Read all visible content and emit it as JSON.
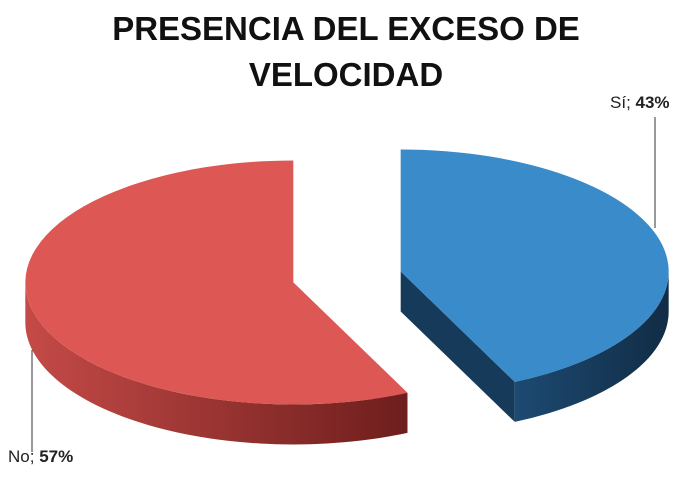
{
  "chart_data": {
    "type": "pie3d",
    "title": "PRESENCIA DEL EXCESO DE VELOCIDAD",
    "categories": [
      "Sí",
      "No"
    ],
    "values": [
      43,
      57
    ],
    "value_labels": [
      "43%",
      "57%"
    ],
    "label_separator": "; ",
    "colors": [
      "#3a8bc9",
      "#dd5755"
    ],
    "side_colors": [
      "#163a5a",
      "#a8383a"
    ]
  }
}
